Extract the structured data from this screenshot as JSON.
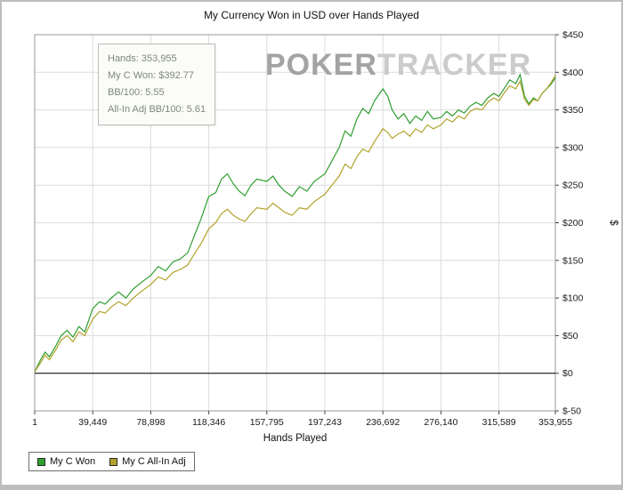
{
  "window": {
    "title": "My Currency Won in USD over Hands Played"
  },
  "watermark": {
    "part1": "POKER",
    "part2": "TRACKER"
  },
  "tooltip": {
    "lines": [
      "Hands: 353,955",
      "My C Won: $392.77",
      "BB/100: 5.55",
      "All-In Adj BB/100: 5.61"
    ]
  },
  "legend": {
    "items": [
      {
        "label": "My C Won",
        "color": "#2f9e2f"
      },
      {
        "label": "My C All-In Adj",
        "color": "#b1a32b"
      }
    ]
  },
  "colors": {
    "grid": "#dcdcdc",
    "plot_border": "#9a9a9a",
    "zero_line": "#000000",
    "tick": "#444444",
    "tick_label": "#1a1a1a"
  },
  "chart_data": {
    "type": "line",
    "title": "My Currency Won in USD over Hands Played",
    "xlabel": "Hands Played",
    "ylabel": "$",
    "xlim": [
      1,
      353955
    ],
    "ylim": [
      -50,
      450
    ],
    "grid": true,
    "legend_position": "bottom-left",
    "x_ticks": [
      1,
      39449,
      78898,
      118346,
      157795,
      197243,
      236692,
      276140,
      315589,
      353955
    ],
    "x_tick_labels": [
      "1",
      "39,449",
      "78,898",
      "118,346",
      "157,795",
      "197,243",
      "236,692",
      "276,140",
      "315,589",
      "353,955"
    ],
    "y_ticks": [
      -50,
      0,
      50,
      100,
      150,
      200,
      250,
      300,
      350,
      400,
      450
    ],
    "y_tick_labels": [
      "$-50",
      "$0",
      "$50",
      "$100",
      "$150",
      "$200",
      "$250",
      "$300",
      "$350",
      "$400",
      "$450"
    ],
    "series": [
      {
        "name": "My C Won",
        "color": "#2f9e2f",
        "points": [
          [
            1,
            2
          ],
          [
            4000,
            18
          ],
          [
            7000,
            28
          ],
          [
            10000,
            22
          ],
          [
            14000,
            35
          ],
          [
            18000,
            50
          ],
          [
            22000,
            57
          ],
          [
            26000,
            48
          ],
          [
            30000,
            62
          ],
          [
            34000,
            55
          ],
          [
            39449,
            86
          ],
          [
            44000,
            95
          ],
          [
            48000,
            92
          ],
          [
            52000,
            100
          ],
          [
            57000,
            108
          ],
          [
            62000,
            100
          ],
          [
            67000,
            112
          ],
          [
            72000,
            120
          ],
          [
            78898,
            130
          ],
          [
            84000,
            142
          ],
          [
            89000,
            136
          ],
          [
            94000,
            148
          ],
          [
            99000,
            152
          ],
          [
            104000,
            160
          ],
          [
            109000,
            185
          ],
          [
            113000,
            205
          ],
          [
            118346,
            235
          ],
          [
            123000,
            240
          ],
          [
            127000,
            258
          ],
          [
            131000,
            265
          ],
          [
            135000,
            252
          ],
          [
            139000,
            242
          ],
          [
            143000,
            236
          ],
          [
            147000,
            250
          ],
          [
            151000,
            258
          ],
          [
            157795,
            255
          ],
          [
            162000,
            262
          ],
          [
            166000,
            250
          ],
          [
            170000,
            242
          ],
          [
            175000,
            235
          ],
          [
            180000,
            248
          ],
          [
            185000,
            242
          ],
          [
            190000,
            255
          ],
          [
            197243,
            265
          ],
          [
            202000,
            282
          ],
          [
            207000,
            300
          ],
          [
            211000,
            322
          ],
          [
            215000,
            315
          ],
          [
            219000,
            338
          ],
          [
            223000,
            352
          ],
          [
            227000,
            345
          ],
          [
            231000,
            362
          ],
          [
            236692,
            378
          ],
          [
            240000,
            368
          ],
          [
            243000,
            350
          ],
          [
            247000,
            338
          ],
          [
            251000,
            345
          ],
          [
            255000,
            332
          ],
          [
            259000,
            342
          ],
          [
            263000,
            336
          ],
          [
            267000,
            348
          ],
          [
            271000,
            338
          ],
          [
            276140,
            340
          ],
          [
            280000,
            348
          ],
          [
            284000,
            342
          ],
          [
            288000,
            350
          ],
          [
            292000,
            346
          ],
          [
            296000,
            355
          ],
          [
            300000,
            360
          ],
          [
            304000,
            356
          ],
          [
            308000,
            366
          ],
          [
            312000,
            372
          ],
          [
            315589,
            368
          ],
          [
            319000,
            378
          ],
          [
            323000,
            390
          ],
          [
            327000,
            385
          ],
          [
            330000,
            397
          ],
          [
            333000,
            368
          ],
          [
            336000,
            358
          ],
          [
            339000,
            366
          ],
          [
            342000,
            362
          ],
          [
            345000,
            372
          ],
          [
            348000,
            378
          ],
          [
            351000,
            384
          ],
          [
            353955,
            392.77
          ]
        ]
      },
      {
        "name": "My C All-In Adj",
        "color": "#b1a32b",
        "points": [
          [
            1,
            2
          ],
          [
            4000,
            14
          ],
          [
            7000,
            24
          ],
          [
            10000,
            18
          ],
          [
            14000,
            30
          ],
          [
            18000,
            44
          ],
          [
            22000,
            50
          ],
          [
            26000,
            42
          ],
          [
            30000,
            55
          ],
          [
            34000,
            50
          ],
          [
            39449,
            72
          ],
          [
            44000,
            82
          ],
          [
            48000,
            80
          ],
          [
            52000,
            88
          ],
          [
            57000,
            95
          ],
          [
            62000,
            90
          ],
          [
            67000,
            100
          ],
          [
            72000,
            108
          ],
          [
            78898,
            118
          ],
          [
            84000,
            128
          ],
          [
            89000,
            124
          ],
          [
            94000,
            134
          ],
          [
            99000,
            138
          ],
          [
            104000,
            144
          ],
          [
            109000,
            160
          ],
          [
            113000,
            172
          ],
          [
            118346,
            192
          ],
          [
            123000,
            200
          ],
          [
            127000,
            212
          ],
          [
            131000,
            218
          ],
          [
            135000,
            210
          ],
          [
            139000,
            205
          ],
          [
            143000,
            202
          ],
          [
            147000,
            212
          ],
          [
            151000,
            220
          ],
          [
            157795,
            218
          ],
          [
            162000,
            226
          ],
          [
            166000,
            220
          ],
          [
            170000,
            214
          ],
          [
            175000,
            210
          ],
          [
            180000,
            220
          ],
          [
            185000,
            218
          ],
          [
            190000,
            228
          ],
          [
            197243,
            238
          ],
          [
            202000,
            250
          ],
          [
            207000,
            262
          ],
          [
            211000,
            278
          ],
          [
            215000,
            272
          ],
          [
            219000,
            288
          ],
          [
            223000,
            298
          ],
          [
            227000,
            294
          ],
          [
            231000,
            308
          ],
          [
            236692,
            325
          ],
          [
            240000,
            320
          ],
          [
            243000,
            312
          ],
          [
            247000,
            318
          ],
          [
            251000,
            322
          ],
          [
            255000,
            315
          ],
          [
            259000,
            325
          ],
          [
            263000,
            320
          ],
          [
            267000,
            330
          ],
          [
            271000,
            325
          ],
          [
            276140,
            330
          ],
          [
            280000,
            338
          ],
          [
            284000,
            334
          ],
          [
            288000,
            342
          ],
          [
            292000,
            338
          ],
          [
            296000,
            348
          ],
          [
            300000,
            352
          ],
          [
            304000,
            350
          ],
          [
            308000,
            360
          ],
          [
            312000,
            366
          ],
          [
            315589,
            362
          ],
          [
            319000,
            372
          ],
          [
            323000,
            382
          ],
          [
            327000,
            378
          ],
          [
            330000,
            388
          ],
          [
            333000,
            364
          ],
          [
            336000,
            356
          ],
          [
            339000,
            364
          ],
          [
            342000,
            362
          ],
          [
            345000,
            372
          ],
          [
            348000,
            378
          ],
          [
            351000,
            386
          ],
          [
            353955,
            396
          ]
        ]
      }
    ]
  }
}
